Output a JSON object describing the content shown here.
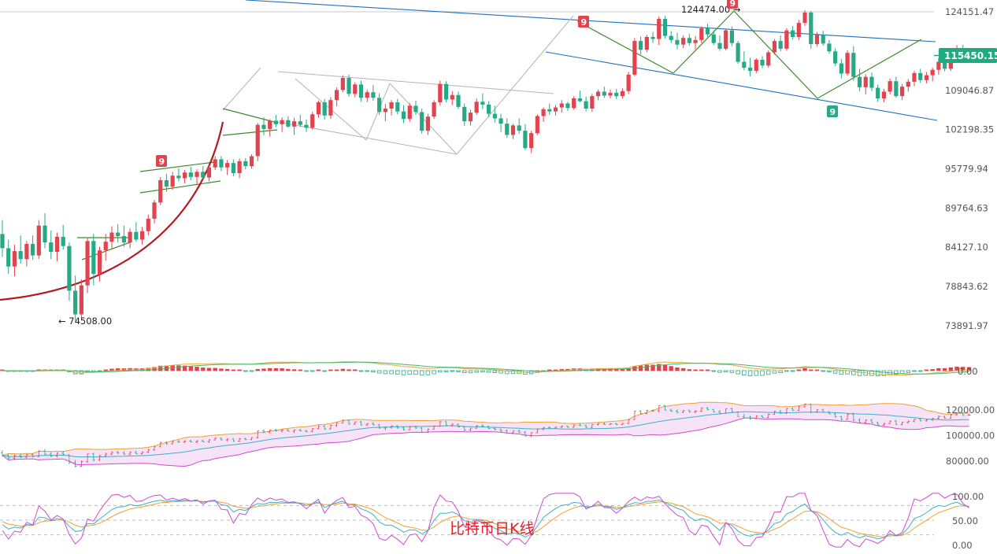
{
  "caption": "比特币日K线",
  "colors": {
    "up": "#e2434f",
    "down": "#27a986",
    "trend": "#1f6fc2",
    "triangle": "#3a8c2a",
    "curve": "#b01c22",
    "gray": "#b4b4b4",
    "price_tag": "#1faa7f"
  },
  "chart_data": {
    "type": "candlestick",
    "main": {
      "y_ticks": [
        "124151.47",
        "109046.87",
        "102198.35",
        "95779.94",
        "89764.63",
        "84127.10",
        "78843.62",
        "73891.97"
      ],
      "current_price": "115450.15",
      "annotations": {
        "high": "124474.00",
        "low": "74508.00"
      },
      "td_markers": [
        "9",
        "9",
        "9",
        "9"
      ],
      "ohlc": [
        [
          86000,
          88000,
          82800,
          84000
        ],
        [
          84000,
          85200,
          80500,
          81500
        ],
        [
          81500,
          84500,
          80200,
          83600
        ],
        [
          83600,
          85800,
          81900,
          82500
        ],
        [
          82500,
          85000,
          81500,
          84600
        ],
        [
          84600,
          85800,
          82400,
          83000
        ],
        [
          83000,
          88000,
          82500,
          87200
        ],
        [
          87200,
          89000,
          84000,
          84800
        ],
        [
          84800,
          86500,
          82500,
          83500
        ],
        [
          83500,
          86200,
          82200,
          85600
        ],
        [
          85600,
          87300,
          83800,
          84300
        ],
        [
          84300,
          84800,
          77000,
          78300
        ],
        [
          78300,
          80300,
          74508,
          75300
        ],
        [
          75300,
          79800,
          74800,
          79000
        ],
        [
          79000,
          85500,
          78000,
          85000
        ],
        [
          85000,
          86000,
          79000,
          80500
        ],
        [
          80500,
          84200,
          79500,
          83700
        ],
        [
          83700,
          86000,
          82300,
          84900
        ],
        [
          84900,
          87100,
          84000,
          86200
        ],
        [
          86200,
          87400,
          84800,
          85700
        ],
        [
          85700,
          87200,
          84200,
          84800
        ],
        [
          84800,
          86800,
          84000,
          86300
        ],
        [
          86300,
          87700,
          84900,
          85200
        ],
        [
          85200,
          87000,
          84500,
          86400
        ],
        [
          86400,
          88800,
          85800,
          88200
        ],
        [
          88200,
          91000,
          87500,
          90600
        ],
        [
          90600,
          94500,
          90200,
          94000
        ],
        [
          94000,
          95000,
          92200,
          93000
        ],
        [
          93000,
          95300,
          92500,
          94700
        ],
        [
          94700,
          95900,
          93800,
          94300
        ],
        [
          94300,
          95600,
          93500,
          95200
        ],
        [
          95200,
          96100,
          94000,
          94500
        ],
        [
          94500,
          95700,
          93200,
          95300
        ],
        [
          95300,
          96200,
          94100,
          94400
        ],
        [
          94400,
          96400,
          93800,
          96000
        ],
        [
          96000,
          97800,
          95600,
          97300
        ],
        [
          97300,
          97800,
          95400,
          96000
        ],
        [
          96000,
          97200,
          94800,
          96700
        ],
        [
          96700,
          97300,
          94600,
          95100
        ],
        [
          95100,
          97400,
          94300,
          97000
        ],
        [
          97000,
          97500,
          95700,
          96200
        ],
        [
          96200,
          98100,
          95800,
          97800
        ],
        [
          97800,
          103300,
          97000,
          103000
        ],
        [
          103000,
          104300,
          101200,
          102300
        ],
        [
          102300,
          104000,
          101000,
          103700
        ],
        [
          103700,
          104700,
          102600,
          103100
        ],
        [
          103100,
          104300,
          101800,
          103800
        ],
        [
          103800,
          104500,
          102500,
          102700
        ],
        [
          102700,
          104200,
          101300,
          103600
        ],
        [
          103600,
          104700,
          102600,
          103000
        ],
        [
          103000,
          103900,
          101800,
          102500
        ],
        [
          102500,
          105200,
          102200,
          104800
        ],
        [
          104800,
          107200,
          104200,
          106900
        ],
        [
          106900,
          107500,
          103900,
          104600
        ],
        [
          104600,
          107800,
          104000,
          107300
        ],
        [
          107300,
          109600,
          106200,
          109100
        ],
        [
          109100,
          111800,
          108700,
          111300
        ],
        [
          111300,
          111900,
          107900,
          108400
        ],
        [
          108400,
          110500,
          107800,
          110100
        ],
        [
          110100,
          110800,
          107000,
          107700
        ],
        [
          107700,
          109200,
          106900,
          108700
        ],
        [
          108700,
          110000,
          107200,
          107700
        ],
        [
          107700,
          108500,
          104700,
          105200
        ],
        [
          105200,
          106600,
          103600,
          105800
        ],
        [
          105800,
          107300,
          104600,
          106900
        ],
        [
          106900,
          107500,
          104800,
          105300
        ],
        [
          105300,
          106400,
          103300,
          104000
        ],
        [
          104000,
          106800,
          103500,
          106300
        ],
        [
          106300,
          107200,
          104700,
          105200
        ],
        [
          105200,
          105800,
          101500,
          102000
        ],
        [
          102000,
          104900,
          101300,
          104400
        ],
        [
          104400,
          107300,
          104000,
          106900
        ],
        [
          106900,
          110800,
          106300,
          110200
        ],
        [
          110200,
          110700,
          106900,
          107400
        ],
        [
          107400,
          108900,
          106400,
          108200
        ],
        [
          108200,
          108800,
          105700,
          106100
        ],
        [
          106100,
          106700,
          102800,
          103600
        ],
        [
          103600,
          105600,
          102900,
          105100
        ],
        [
          105100,
          107600,
          104700,
          107000
        ],
        [
          107000,
          108500,
          105700,
          106500
        ],
        [
          106500,
          107100,
          104300,
          104900
        ],
        [
          104900,
          106300,
          103400,
          104100
        ],
        [
          104100,
          104900,
          101800,
          103200
        ],
        [
          103200,
          104100,
          100800,
          101300
        ],
        [
          101300,
          103200,
          100600,
          102900
        ],
        [
          102900,
          104100,
          101500,
          102000
        ],
        [
          102000,
          103100,
          98800,
          99100
        ],
        [
          99100,
          102000,
          98300,
          101600
        ],
        [
          101600,
          104800,
          101300,
          104500
        ],
        [
          104500,
          106000,
          103500,
          105700
        ],
        [
          105700,
          106700,
          104700,
          105300
        ],
        [
          105300,
          106400,
          104600,
          106000
        ],
        [
          106000,
          107300,
          105100,
          106700
        ],
        [
          106700,
          107000,
          105400,
          105900
        ],
        [
          105900,
          108000,
          105600,
          107600
        ],
        [
          107600,
          109000,
          106900,
          107100
        ],
        [
          107100,
          107900,
          105300,
          105800
        ],
        [
          105800,
          108400,
          105200,
          108000
        ],
        [
          108000,
          109200,
          107300,
          108800
        ],
        [
          108800,
          109700,
          107700,
          108100
        ],
        [
          108100,
          109200,
          107600,
          108600
        ],
        [
          108600,
          109300,
          107500,
          108000
        ],
        [
          108000,
          109400,
          107600,
          108900
        ],
        [
          108900,
          112400,
          108400,
          111900
        ],
        [
          111900,
          118900,
          111600,
          118300
        ],
        [
          118300,
          119200,
          115700,
          116600
        ],
        [
          116600,
          119500,
          116100,
          119100
        ],
        [
          119100,
          120100,
          117900,
          118700
        ],
        [
          118700,
          123200,
          117500,
          122700
        ],
        [
          122700,
          123300,
          118800,
          119300
        ],
        [
          119300,
          120300,
          117900,
          118500
        ],
        [
          118500,
          119900,
          116700,
          117600
        ],
        [
          117600,
          119400,
          116900,
          118900
        ],
        [
          118900,
          119700,
          117400,
          117900
        ],
        [
          117900,
          119300,
          116700,
          118500
        ],
        [
          118500,
          121200,
          117900,
          120800
        ],
        [
          120800,
          121700,
          119100,
          119600
        ],
        [
          119600,
          120400,
          117500,
          117900
        ],
        [
          117900,
          119400,
          116400,
          116800
        ],
        [
          116800,
          120700,
          116500,
          120400
        ],
        [
          120400,
          121200,
          117300,
          117900
        ],
        [
          117900,
          118300,
          113900,
          114300
        ],
        [
          114300,
          116300,
          112700,
          113200
        ],
        [
          113200,
          115100,
          111600,
          112600
        ],
        [
          112600,
          115000,
          112200,
          114700
        ],
        [
          114700,
          115400,
          113100,
          113600
        ],
        [
          113600,
          116500,
          113200,
          116100
        ],
        [
          116100,
          118700,
          115700,
          118300
        ],
        [
          118300,
          119400,
          116300,
          116800
        ],
        [
          116800,
          120800,
          116400,
          120400
        ],
        [
          120400,
          121300,
          118600,
          119100
        ],
        [
          119100,
          122500,
          118500,
          121900
        ],
        [
          121900,
          124474,
          121300,
          124000
        ],
        [
          124000,
          124300,
          116800,
          117700
        ],
        [
          117700,
          120100,
          117200,
          119500
        ],
        [
          119500,
          120300,
          117400,
          117800
        ],
        [
          117800,
          118500,
          115900,
          116300
        ],
        [
          116300,
          116900,
          113500,
          114000
        ],
        [
          114000,
          114900,
          111200,
          112100
        ],
        [
          112100,
          116500,
          111700,
          116000
        ],
        [
          116000,
          117300,
          110800,
          111500
        ],
        [
          111500,
          113000,
          108900,
          109600
        ],
        [
          109600,
          112000,
          108300,
          111500
        ],
        [
          111500,
          112300,
          108900,
          109500
        ],
        [
          109500,
          110100,
          107000,
          107600
        ],
        [
          107600,
          109300,
          106900,
          108800
        ],
        [
          108800,
          111200,
          108300,
          110700
        ],
        [
          110700,
          111500,
          107700,
          108000
        ],
        [
          108000,
          110200,
          107300,
          109700
        ],
        [
          109700,
          111100,
          108800,
          110600
        ],
        [
          110600,
          112600,
          109800,
          112200
        ],
        [
          112200,
          113000,
          110400,
          110900
        ],
        [
          110900,
          112400,
          110300,
          111800
        ],
        [
          111800,
          113200,
          110700,
          112800
        ],
        [
          112800,
          115000,
          111900,
          114300
        ],
        [
          114300,
          114800,
          112500,
          113000
        ],
        [
          113000,
          116200,
          112600,
          115700
        ],
        [
          115700,
          117500,
          114800,
          116900
        ],
        [
          116900,
          117600,
          114700,
          115200
        ],
        [
          115200,
          116500,
          114800,
          115450
        ]
      ]
    },
    "macd": {
      "y_ticks": [
        "0.00"
      ]
    },
    "boll": {
      "y_ticks": [
        "120000.00",
        "100000.00",
        "80000.00"
      ]
    },
    "kdj": {
      "y_ticks": [
        "100.00",
        "50.00",
        "0.00"
      ]
    }
  }
}
